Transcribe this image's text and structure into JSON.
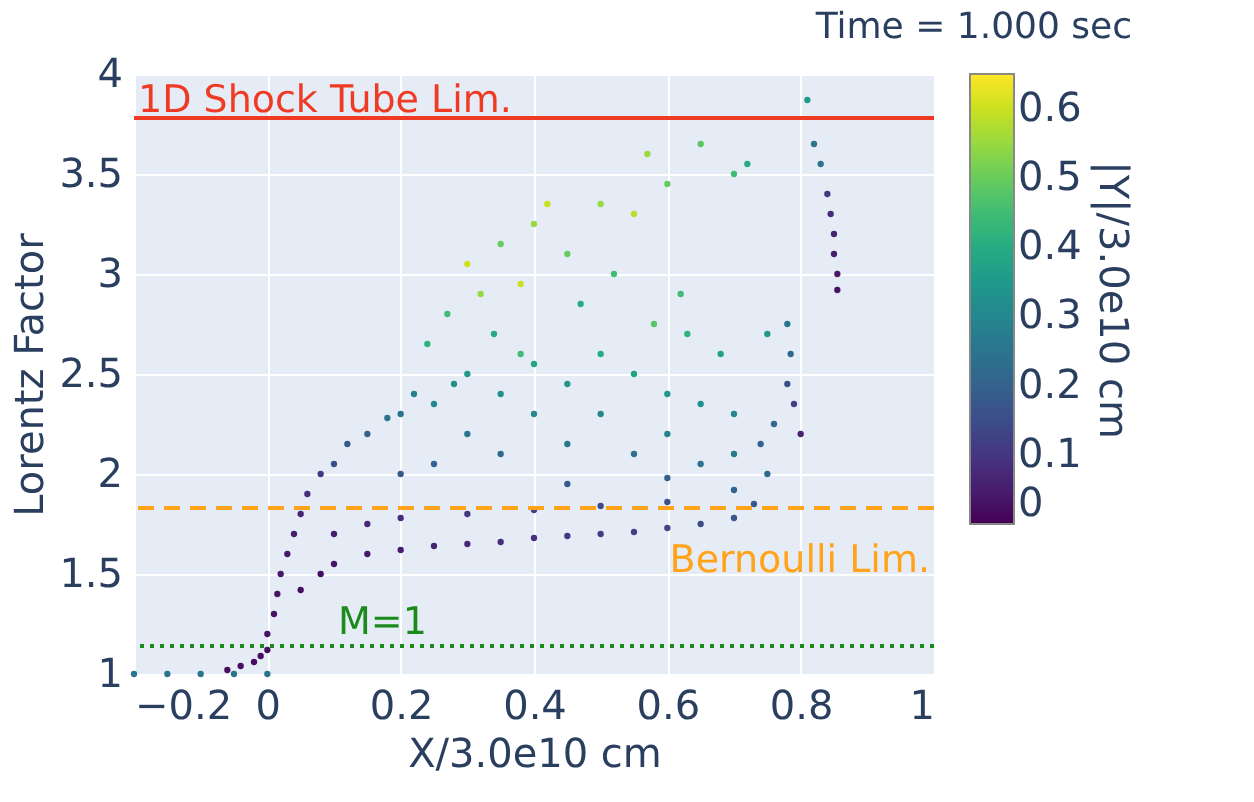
{
  "chart_data": {
    "type": "scatter",
    "title": "Time = 1.000 sec",
    "xlabel": "X/3.0e10 cm",
    "ylabel": "Lorentz Factor",
    "clabel": "|Y|/3.0e10 cm",
    "x": [
      -0.2,
      -0.15,
      -0.1,
      -0.05,
      0.0,
      -0.06,
      -0.04,
      -0.02,
      -0.01,
      0.0,
      0.0,
      0.01,
      0.015,
      0.02,
      0.03,
      0.04,
      0.05,
      0.06,
      0.08,
      0.05,
      0.08,
      0.1,
      0.15,
      0.2,
      0.25,
      0.3,
      0.35,
      0.4,
      0.45,
      0.5,
      0.55,
      0.6,
      0.65,
      0.7,
      0.73,
      0.1,
      0.15,
      0.2,
      0.3,
      0.4,
      0.5,
      0.6,
      0.7,
      0.75,
      0.1,
      0.12,
      0.15,
      0.18,
      0.2,
      0.22,
      0.25,
      0.28,
      0.3,
      0.3,
      0.35,
      0.35,
      0.4,
      0.4,
      0.45,
      0.45,
      0.5,
      0.5,
      0.55,
      0.55,
      0.6,
      0.6,
      0.65,
      0.65,
      0.7,
      0.7,
      0.25,
      0.2,
      0.45,
      0.6,
      0.24,
      0.27,
      0.3,
      0.32,
      0.35,
      0.38,
      0.4,
      0.42,
      0.45,
      0.38,
      0.47,
      0.5,
      0.52,
      0.55,
      0.57,
      0.6,
      0.62,
      0.65,
      0.7,
      0.72,
      0.63,
      0.68,
      0.75,
      0.58,
      0.34,
      0.81,
      0.82,
      0.83,
      0.84,
      0.845,
      0.85,
      0.85,
      0.855,
      0.855,
      0.78,
      0.785,
      0.78,
      0.79,
      0.8,
      0.76,
      0.74
    ],
    "values": [
      1.0,
      1.0,
      1.0,
      1.0,
      1.0,
      1.02,
      1.04,
      1.06,
      1.09,
      1.12,
      1.2,
      1.3,
      1.4,
      1.5,
      1.6,
      1.7,
      1.8,
      1.9,
      2.0,
      1.42,
      1.5,
      1.55,
      1.6,
      1.62,
      1.64,
      1.65,
      1.66,
      1.68,
      1.69,
      1.7,
      1.71,
      1.73,
      1.75,
      1.78,
      1.85,
      1.7,
      1.75,
      1.78,
      1.8,
      1.82,
      1.84,
      1.86,
      1.92,
      2.0,
      2.05,
      2.15,
      2.2,
      2.28,
      2.3,
      2.4,
      2.35,
      2.45,
      2.5,
      2.2,
      2.4,
      2.1,
      2.55,
      2.3,
      2.45,
      2.15,
      2.6,
      2.3,
      2.5,
      2.1,
      2.4,
      2.2,
      2.35,
      2.05,
      2.3,
      2.1,
      2.05,
      2.0,
      1.95,
      1.98,
      2.65,
      2.8,
      3.05,
      2.9,
      3.15,
      2.95,
      3.25,
      3.35,
      3.1,
      2.6,
      2.85,
      3.35,
      3.0,
      3.3,
      3.6,
      3.45,
      2.9,
      3.65,
      3.5,
      3.55,
      2.7,
      2.6,
      2.7,
      2.75,
      2.7,
      3.87,
      3.65,
      3.55,
      3.4,
      3.3,
      3.2,
      3.1,
      3.0,
      2.92,
      2.75,
      2.6,
      2.45,
      2.35,
      2.2,
      2.25,
      2.15
    ],
    "cvalues": [
      0.25,
      0.25,
      0.25,
      0.25,
      0.25,
      0.02,
      0.02,
      0.02,
      0.02,
      0.02,
      0.03,
      0.03,
      0.03,
      0.04,
      0.04,
      0.05,
      0.06,
      0.08,
      0.1,
      0.02,
      0.02,
      0.03,
      0.04,
      0.05,
      0.06,
      0.07,
      0.08,
      0.09,
      0.1,
      0.11,
      0.12,
      0.13,
      0.15,
      0.17,
      0.18,
      0.05,
      0.07,
      0.08,
      0.1,
      0.12,
      0.14,
      0.16,
      0.2,
      0.22,
      0.15,
      0.18,
      0.2,
      0.24,
      0.25,
      0.28,
      0.3,
      0.32,
      0.35,
      0.25,
      0.32,
      0.22,
      0.38,
      0.3,
      0.35,
      0.25,
      0.4,
      0.3,
      0.38,
      0.24,
      0.35,
      0.28,
      0.32,
      0.24,
      0.3,
      0.26,
      0.2,
      0.18,
      0.18,
      0.2,
      0.42,
      0.45,
      0.6,
      0.55,
      0.5,
      0.6,
      0.55,
      0.6,
      0.5,
      0.45,
      0.4,
      0.55,
      0.45,
      0.58,
      0.55,
      0.5,
      0.45,
      0.48,
      0.45,
      0.4,
      0.42,
      0.38,
      0.35,
      0.48,
      0.4,
      0.35,
      0.25,
      0.25,
      0.1,
      0.08,
      0.06,
      0.05,
      0.04,
      0.03,
      0.25,
      0.22,
      0.15,
      0.12,
      0.06,
      0.22,
      0.2
    ],
    "clim": [
      0,
      0.65
    ],
    "cticks": [
      0,
      0.1,
      0.2,
      0.3,
      0.4,
      0.5,
      0.6
    ],
    "xlim": [
      -0.2,
      1
    ],
    "xticks": [
      {
        "value": -0.2,
        "label": "−0.2"
      },
      0,
      0.2,
      0.4,
      0.6,
      0.8,
      1
    ],
    "ylim": [
      1,
      4
    ],
    "yticks": [
      1,
      1.5,
      2,
      2.5,
      3,
      3.5,
      4
    ],
    "ref_lines": [
      {
        "axis": "y",
        "value": 3.78,
        "label": "1D Shock Tube Lim.",
        "color": "#ef3b24",
        "line_style": "solid"
      },
      {
        "axis": "y",
        "value": 1.83,
        "label": "Bernoulli Lim.",
        "color": "#ffa31a",
        "line_style": "dashed"
      },
      {
        "axis": "y",
        "value": 1.14,
        "label": "M=1",
        "color": "#1a8a1a",
        "line_style": "dotted"
      }
    ],
    "grid": true,
    "marker": "circle",
    "legend": "right"
  }
}
